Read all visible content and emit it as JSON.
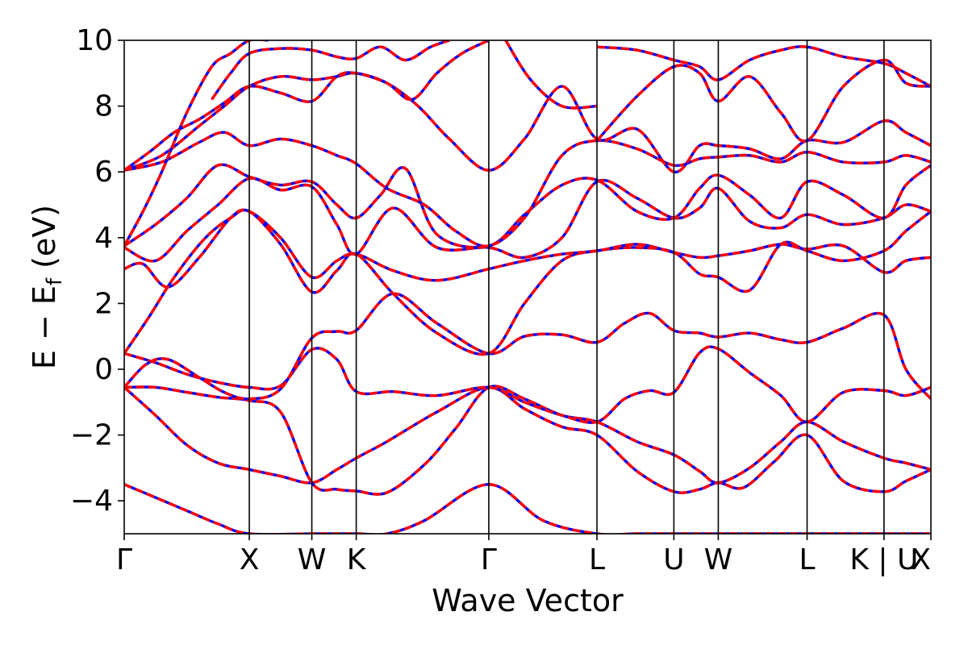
{
  "chart_data": {
    "type": "line",
    "title": "",
    "xlabel": "Wave Vector",
    "ylabel": "E − E_f (eV)",
    "ylabel_main": "E − E",
    "ylabel_sub": "f",
    "ylabel_unit": " (eV)",
    "ylim": [
      -5,
      10
    ],
    "yticks": [
      -4,
      -2,
      0,
      2,
      4,
      6,
      8,
      10
    ],
    "ytick_labels": [
      "−4",
      "−2",
      "0",
      "2",
      "4",
      "6",
      "8",
      "10"
    ],
    "grid": false,
    "legend": "none",
    "x_range": [
      0,
      12.9
    ],
    "kpoints": [
      {
        "label": "Γ",
        "x": 0
      },
      {
        "label": "X",
        "x": 2.0
      },
      {
        "label": "W",
        "x": 3.0
      },
      {
        "label": "K",
        "x": 3.71
      },
      {
        "label": "Γ",
        "x": 5.83
      },
      {
        "label": "L",
        "x": 7.56
      },
      {
        "label": "U",
        "x": 8.79
      },
      {
        "label": "W",
        "x": 9.5
      },
      {
        "label": "L",
        "x": 10.92
      },
      {
        "label": "K | U",
        "x": 12.15
      },
      {
        "label": "X",
        "x": 12.9
      }
    ],
    "colors": {
      "primary_line": "#ff0000",
      "overlay_dash": "#0000ff"
    },
    "bands": [
      {
        "x": [
          0,
          0.5,
          1.0,
          1.5,
          2.0,
          3.0,
          3.71,
          4.2,
          4.8,
          5.83,
          6.7,
          7.56,
          8.2,
          8.79,
          9.5,
          10.2,
          10.92,
          11.5,
          12.15,
          12.9
        ],
        "y": [
          -3.5,
          -3.9,
          -4.3,
          -4.7,
          -5.0,
          -5.0,
          -5.0,
          -5.0,
          -4.6,
          -3.5,
          -4.6,
          -5.0,
          -5.0,
          -5.0,
          -5.0,
          -5.0,
          -5.0,
          -5.0,
          -5.0,
          -5.0
        ]
      },
      {
        "x": [
          0,
          0.5,
          1.0,
          1.5,
          2.0,
          2.5,
          3.0,
          3.4,
          3.71,
          4.2,
          5.0,
          5.83,
          6.4,
          7.0,
          7.56,
          8.2,
          8.79,
          9.2,
          9.5,
          9.9,
          10.4,
          10.92,
          11.5,
          12.15,
          12.5,
          12.9
        ],
        "y": [
          -0.55,
          -1.4,
          -2.3,
          -2.85,
          -3.05,
          -3.25,
          -3.45,
          -3.05,
          -2.7,
          -2.2,
          -1.3,
          -0.55,
          -1.2,
          -1.75,
          -2.0,
          -3.1,
          -3.72,
          -3.65,
          -3.45,
          -3.6,
          -2.8,
          -2.0,
          -3.4,
          -3.72,
          -3.4,
          -3.05
        ]
      },
      {
        "x": [
          0,
          0.5,
          1.0,
          1.5,
          2.0,
          2.5,
          3.0,
          3.4,
          3.71,
          4.2,
          4.8,
          5.3,
          5.83,
          6.4,
          7.0,
          7.56,
          8.2,
          8.79,
          9.2,
          9.5,
          10.0,
          10.5,
          10.92,
          11.5,
          12.15,
          12.5,
          12.9
        ],
        "y": [
          -0.55,
          -0.55,
          -0.7,
          -0.85,
          -0.95,
          -1.3,
          -3.45,
          -3.65,
          -3.7,
          -3.75,
          -2.9,
          -1.8,
          -0.55,
          -0.9,
          -1.4,
          -1.6,
          -2.2,
          -2.6,
          -3.1,
          -3.45,
          -3.0,
          -2.2,
          -1.6,
          -2.2,
          -2.7,
          -2.85,
          -3.05
        ]
      },
      {
        "x": [
          0,
          0.5,
          1.0,
          1.5,
          2.0,
          2.5,
          3.0,
          3.4,
          3.71,
          4.3,
          5.0,
          5.83,
          6.4,
          7.0,
          7.56,
          8.0,
          8.4,
          8.79,
          9.2,
          9.5,
          10.0,
          10.5,
          10.92,
          11.5,
          12.15,
          12.5,
          12.9
        ],
        "y": [
          0.48,
          0.2,
          -0.15,
          -0.4,
          -0.55,
          -0.5,
          0.6,
          0.3,
          -0.68,
          -0.68,
          -0.8,
          -0.55,
          -1.0,
          -1.4,
          -1.6,
          -0.9,
          -0.65,
          -0.7,
          0.5,
          0.62,
          -0.1,
          -0.8,
          -1.6,
          -0.7,
          -0.65,
          -0.8,
          -0.55
        ]
      },
      {
        "x": [
          0,
          0.35,
          0.7,
          1.2,
          1.6,
          2.0,
          2.5,
          3.0,
          3.4,
          3.71,
          4.3,
          5.0,
          5.83,
          6.4,
          7.0,
          7.56,
          8.0,
          8.4,
          8.79,
          9.2,
          9.5,
          10.0,
          10.5,
          10.92,
          11.5,
          12.15,
          12.5,
          12.9
        ],
        "y": [
          -0.55,
          0.15,
          0.3,
          -0.25,
          -0.7,
          -0.9,
          -0.6,
          0.95,
          1.15,
          1.18,
          2.3,
          1.4,
          0.48,
          1.0,
          1.05,
          0.82,
          1.4,
          1.7,
          1.18,
          1.1,
          0.98,
          1.1,
          0.9,
          0.82,
          1.25,
          1.65,
          0.0,
          -0.9
        ]
      },
      {
        "x": [
          0,
          0.4,
          0.8,
          1.3,
          1.7,
          2.0,
          2.5,
          3.0,
          3.4,
          3.71,
          4.3,
          5.0,
          5.83,
          6.4,
          7.0,
          7.56,
          8.2,
          8.79,
          9.2,
          9.5,
          10.0,
          10.5,
          10.92,
          11.5,
          12.15,
          12.5,
          12.9
        ],
        "y": [
          0.48,
          1.6,
          2.8,
          4.0,
          4.6,
          4.8,
          3.8,
          2.35,
          3.0,
          3.5,
          2.3,
          1.1,
          0.48,
          2.0,
          3.3,
          3.6,
          3.7,
          3.55,
          2.9,
          2.8,
          2.4,
          3.8,
          3.6,
          3.3,
          3.6,
          4.2,
          4.8
        ]
      },
      {
        "x": [
          0,
          0.3,
          0.7,
          1.2,
          1.7,
          2.0,
          2.5,
          3.0,
          3.4,
          3.71,
          4.3,
          5.0,
          5.83,
          6.4,
          7.0,
          7.56,
          8.2,
          8.79,
          9.2,
          9.5,
          10.0,
          10.5,
          10.92,
          11.5,
          12.15,
          12.5,
          12.9
        ],
        "y": [
          3.05,
          3.2,
          2.5,
          3.4,
          4.6,
          4.8,
          4.0,
          2.8,
          3.3,
          3.5,
          3.0,
          2.7,
          3.05,
          3.3,
          3.5,
          3.6,
          3.8,
          3.55,
          3.4,
          3.45,
          3.6,
          3.8,
          3.65,
          3.75,
          2.95,
          3.3,
          3.4
        ]
      },
      {
        "x": [
          0,
          0.5,
          1.0,
          1.5,
          2.0,
          2.5,
          3.0,
          3.4,
          3.71,
          4.3,
          5.0,
          5.83,
          6.4,
          7.0,
          7.56,
          8.2,
          8.79,
          9.2,
          9.5,
          10.0,
          10.5,
          10.92,
          11.5,
          12.15,
          12.5,
          12.9
        ],
        "y": [
          3.7,
          3.3,
          4.2,
          5.0,
          5.8,
          5.45,
          5.55,
          4.4,
          3.5,
          4.9,
          3.7,
          3.7,
          3.4,
          4.0,
          5.7,
          5.2,
          4.6,
          4.9,
          5.5,
          4.5,
          4.3,
          4.7,
          4.4,
          4.6,
          5.0,
          4.8
        ]
      },
      {
        "x": [
          0,
          0.5,
          1.0,
          1.5,
          2.0,
          2.5,
          3.0,
          3.4,
          3.71,
          4.1,
          4.5,
          5.0,
          5.83,
          6.4,
          7.0,
          7.56,
          8.2,
          8.79,
          9.2,
          9.5,
          10.0,
          10.5,
          10.92,
          11.5,
          12.15,
          12.5,
          12.9
        ],
        "y": [
          3.75,
          4.4,
          5.2,
          6.2,
          5.85,
          5.6,
          5.7,
          5.0,
          4.6,
          5.3,
          6.1,
          4.1,
          3.75,
          4.7,
          5.6,
          5.75,
          4.8,
          4.6,
          5.5,
          5.9,
          5.3,
          4.6,
          5.7,
          5.3,
          4.6,
          5.6,
          6.2
        ]
      },
      {
        "x": [
          0,
          0.6,
          1.2,
          1.6,
          2.0,
          2.5,
          3.0,
          3.4,
          3.71,
          4.2,
          4.8,
          5.3,
          5.83,
          6.4,
          7.0,
          7.56,
          8.2,
          8.79,
          9.2,
          9.5,
          10.0,
          10.5,
          10.92,
          11.5,
          12.15,
          12.5,
          12.9
        ],
        "y": [
          6.05,
          6.3,
          6.9,
          7.2,
          6.8,
          7.0,
          6.8,
          6.5,
          6.25,
          5.5,
          5.0,
          4.2,
          3.75,
          4.6,
          6.5,
          6.95,
          6.7,
          6.2,
          6.4,
          6.45,
          6.5,
          6.3,
          6.6,
          6.3,
          6.3,
          6.5,
          6.3
        ]
      },
      {
        "x": [
          0,
          0.6,
          1.2,
          1.6,
          2.0,
          2.5,
          3.0,
          3.4,
          3.71,
          4.2,
          4.7,
          5.2,
          5.83,
          6.4,
          7.0,
          7.56,
          8.2,
          8.79,
          9.2,
          9.5,
          10.0,
          10.5,
          10.92,
          11.5,
          12.15,
          12.5,
          12.9
        ],
        "y": [
          6.05,
          6.5,
          7.4,
          8.0,
          8.6,
          8.9,
          8.8,
          8.9,
          9.0,
          8.7,
          8.0,
          7.0,
          6.05,
          7.0,
          8.6,
          7.0,
          7.3,
          6.0,
          6.8,
          6.8,
          6.7,
          6.4,
          6.95,
          6.9,
          7.55,
          7.2,
          6.8
        ]
      },
      {
        "x": [
          0,
          0.4,
          0.8,
          1.2,
          1.6,
          2.0,
          2.5,
          3.0,
          3.4,
          3.71,
          4.2,
          4.6,
          5.0,
          5.4,
          5.83
        ],
        "y": [
          6.05,
          6.6,
          7.2,
          7.6,
          8.1,
          8.6,
          8.4,
          8.15,
          8.9,
          9.0,
          8.7,
          8.2,
          9.0,
          9.6,
          10.0
        ]
      },
      {
        "x": [
          0,
          0.3,
          0.6,
          1.0,
          1.4,
          1.7,
          2.0,
          2.3
        ],
        "y": [
          3.75,
          4.8,
          6.0,
          7.8,
          9.2,
          9.6,
          10.0,
          10.0
        ]
      },
      {
        "x": [
          1.4,
          1.7,
          2.0,
          2.5,
          3.0,
          3.4,
          3.71,
          4.1,
          4.5,
          4.9,
          5.2
        ],
        "y": [
          8.2,
          9.0,
          9.6,
          9.75,
          9.7,
          9.5,
          9.45,
          9.8,
          9.4,
          9.8,
          10.0
        ]
      },
      {
        "x": [
          7.56,
          8.2,
          8.79,
          9.2,
          9.5,
          10.0,
          10.5,
          10.92,
          11.5,
          12.15,
          12.5,
          12.9
        ],
        "y": [
          9.8,
          9.7,
          9.4,
          9.2,
          8.8,
          9.4,
          9.7,
          9.8,
          9.5,
          9.3,
          9.0,
          8.6
        ]
      },
      {
        "x": [
          7.56,
          8.2,
          8.79,
          9.2,
          9.5,
          10.0,
          10.5,
          10.92,
          11.5,
          12.15,
          12.5,
          12.9
        ],
        "y": [
          6.95,
          8.3,
          9.2,
          9.0,
          8.15,
          8.9,
          7.8,
          6.95,
          8.6,
          9.4,
          8.7,
          8.6
        ]
      },
      {
        "x": [
          6.1,
          6.5,
          7.0,
          7.56
        ],
        "y": [
          10.0,
          8.8,
          8.0,
          8.0
        ]
      }
    ]
  }
}
